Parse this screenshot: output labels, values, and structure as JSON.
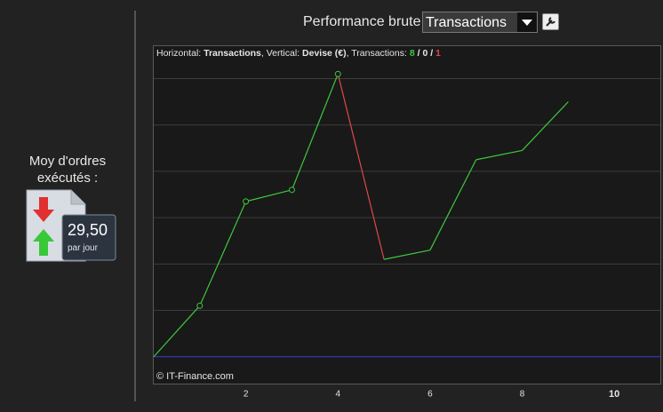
{
  "sidebar": {
    "label": "Moy d'ordres exécutés :",
    "value": "29,50",
    "unit": "par jour"
  },
  "header": {
    "title": "Performance brute",
    "dropdown": "Transactions"
  },
  "chart_data": {
    "type": "line",
    "caption": {
      "h_label": "Horizontal:",
      "h_value": "Transactions",
      "v_label": ", Vertical:",
      "v_value": "Devise (€)",
      "t_label": ", Transactions:",
      "up": 8,
      "flat": 0,
      "down": 1
    },
    "watermark": "© IT-Finance.com",
    "x": [
      0,
      1,
      2,
      3,
      4,
      5,
      6,
      7,
      8,
      9
    ],
    "series": [
      {
        "name": "Transactions",
        "color": "#3ec83e",
        "values": [
          0,
          1.1,
          3.35,
          3.6,
          6.1,
          2.1,
          2.3,
          4.25,
          4.45,
          5.5
        ],
        "segment_colors": [
          "#3ec83e",
          "#3ec83e",
          "#3ec83e",
          "#3ec83e",
          "#e04848",
          "#3ec83e",
          "#3ec83e",
          "#3ec83e",
          "#3ec83e"
        ],
        "markers": [
          false,
          true,
          true,
          true,
          true,
          false,
          false,
          false,
          false,
          false
        ]
      }
    ],
    "xlim": [
      0,
      11
    ],
    "ylim": [
      -0.58,
      6.7
    ],
    "xticks": [
      2,
      4,
      6,
      8,
      10
    ],
    "yticks": [
      0,
      1,
      2,
      3,
      4,
      5,
      6
    ],
    "baseline_color": "#3a3ad0",
    "grid": true
  }
}
